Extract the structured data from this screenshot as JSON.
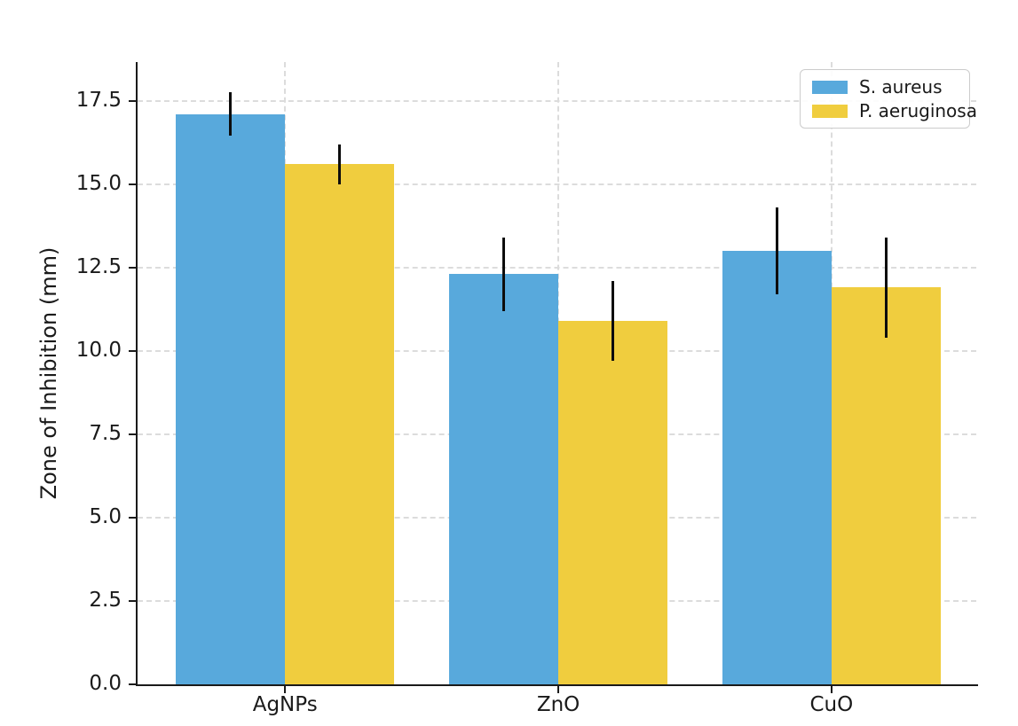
{
  "chart_data": {
    "type": "bar",
    "title": "",
    "categories": [
      "AgNPs",
      "ZnO",
      "CuO"
    ],
    "series": [
      {
        "name": "S. aureus",
        "color": "#58A9DC",
        "values": [
          17.1,
          12.3,
          13.0
        ],
        "errors": [
          0.65,
          1.1,
          1.3
        ]
      },
      {
        "name": "P. aeruginosa",
        "color": "#F0CD3E",
        "values": [
          15.6,
          10.9,
          11.9
        ],
        "errors": [
          0.6,
          1.2,
          1.5
        ]
      }
    ],
    "xlabel": "",
    "ylabel": "Zone of Inhibition (mm)",
    "yticks": [
      0.0,
      2.5,
      5.0,
      7.5,
      10.0,
      12.5,
      15.0,
      17.5
    ],
    "ytick_labels": [
      "0.0",
      "2.5",
      "5.0",
      "7.5",
      "10.0",
      "12.5",
      "15.0",
      "17.5"
    ],
    "ylim": [
      0,
      18.66
    ],
    "grid": true,
    "grid_axes": "both",
    "legend_position": "upper right",
    "error_bar_color": "#0d0d0d",
    "background_color": "#ffffff",
    "spine_color": "#1a1a1a"
  }
}
